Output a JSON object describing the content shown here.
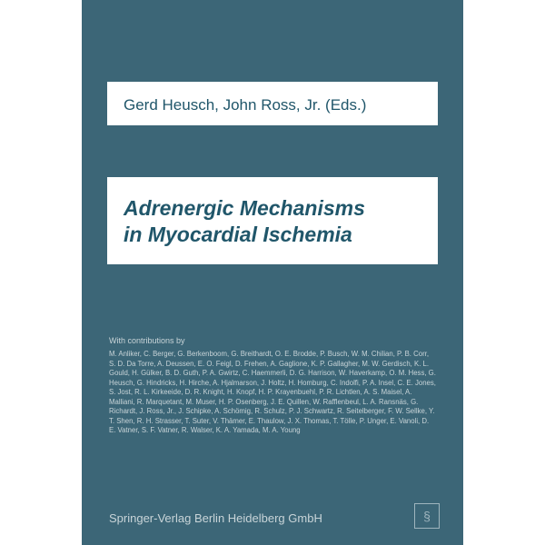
{
  "colors": {
    "cover_bg": "#3c6677",
    "panel_bg": "#ffffff",
    "title_color": "#20566a",
    "contrib_color": "#c8d4d8"
  },
  "editors": "Gerd Heusch, John Ross, Jr. (Eds.)",
  "title_line1": "Adrenergic Mechanisms",
  "title_line2": "in Myocardial Ischemia",
  "contributors_label": "With contributions by",
  "contributors": "M. Anliker, C. Berger, G. Berkenboom, G. Breithardt, O. E. Brodde, P. Busch, W. M. Chilian, P. B. Corr, S. D. Da Torre, A. Deussen, E. O. Feigl, D. Frehen, A. Gaglione, K. P. Gallagher, M. W. Gerdisch, K. L. Gould, H. Gülker, B. D. Guth, P. A. Gwirtz, C. Haemmerli, D. G. Harrison, W. Haverkamp, O. M. Hess, G. Heusch, G. Hindricks, H. Hirche, A. Hjalmarson, J. Holtz, H. Homburg, C. Indolfi, P. A. Insel, C. E. Jones, S. Jost, R. L. Kirkeeide, D. R. Knight, H. Knopf, H. P. Krayenbuehl, P. R. Lichtlen, A. S. Maisel, A. Malliani, R. Marquetant, M. Muser, H. P. Osenberg, J. E. Quillen, W. Rafflenbeul, L. A. Ransnäs, G. Richardt, J. Ross, Jr., J. Schipke, A. Schömig, R. Schulz, P. J. Schwartz, R. Seitelberger, F. W. Sellke, Y. T. Shen, R. H. Strasser, T. Suter, V. Thämer, E. Thaulow, J. X. Thomas, T. Tölle, P. Unger, E. Vanoli, D. E. Vatner, S. F. Vatner, R. Walser, K. A. Yamada, M. A. Young",
  "publisher": "Springer-Verlag Berlin Heidelberg GmbH",
  "logo_text": "§"
}
